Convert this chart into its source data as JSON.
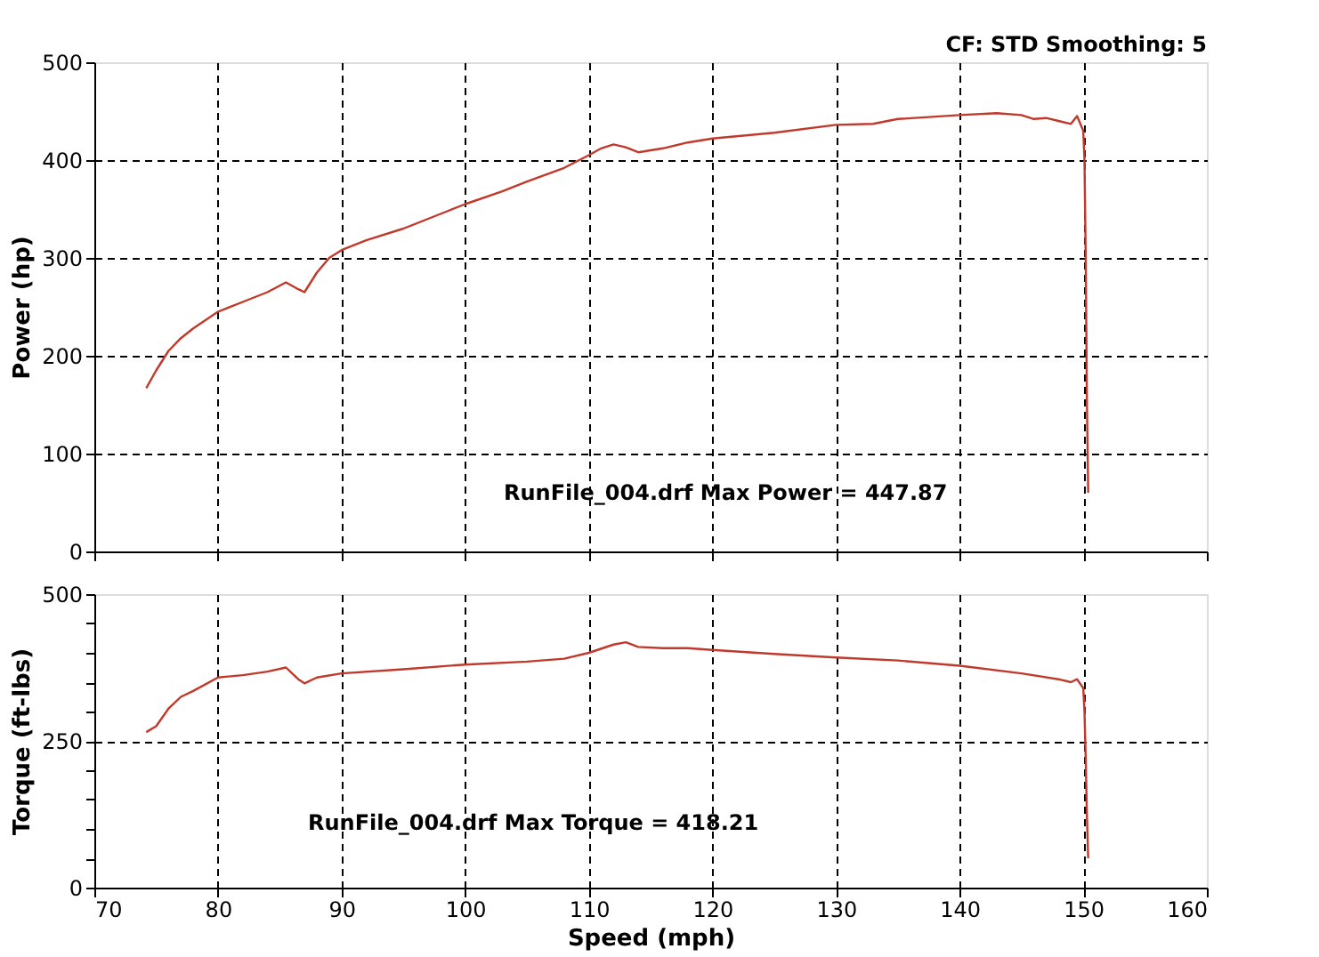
{
  "chart_data": [
    {
      "type": "line",
      "ylabel": "Power (hp)",
      "annotations": [
        "CF: STD  Smoothing: 5",
        "RunFile_004.drf Max Power = 447.87"
      ],
      "series": [
        {
          "color": "#c0392b",
          "x": [
            74.2,
            75,
            76,
            77,
            78,
            80,
            82,
            84,
            85.5,
            86.5,
            87,
            88,
            89,
            90,
            92,
            95,
            98,
            100,
            103,
            105,
            108,
            110,
            111,
            112,
            113,
            114,
            116,
            118,
            120,
            125,
            130,
            133,
            135,
            140,
            143,
            145,
            146,
            147,
            148,
            149,
            149.5,
            150,
            150.1,
            150.2,
            150.3,
            150.4
          ],
          "values": [
            167,
            185,
            205,
            218,
            228,
            245,
            255,
            265,
            275,
            268,
            265,
            285,
            300,
            308,
            318,
            330,
            345,
            355,
            368,
            378,
            392,
            405,
            412,
            416,
            413,
            408,
            412,
            418,
            422,
            428,
            436,
            437,
            442,
            446,
            448,
            446,
            442,
            443,
            440,
            437,
            445,
            430,
            400,
            300,
            150,
            60
          ]
        }
      ],
      "xlim": [
        70,
        160
      ],
      "xticks": [
        70,
        80,
        90,
        100,
        110,
        120,
        130,
        140,
        150,
        160
      ],
      "ylim": [
        0,
        500
      ],
      "yticks": [
        0,
        100,
        200,
        300,
        400,
        500
      ],
      "grid": true,
      "tick_labels": "y",
      "line_style": "solid",
      "marker": "none"
    },
    {
      "type": "line",
      "xlabel": "Speed (mph)",
      "ylabel": "Torque (ft-lbs)",
      "annotations": [
        "RunFile_004.drf Max Torque = 418.21"
      ],
      "series": [
        {
          "color": "#c0392b",
          "x": [
            74.2,
            75,
            76,
            77,
            78,
            80,
            82,
            84,
            85.5,
            86.5,
            87,
            88,
            90,
            95,
            100,
            105,
            108,
            110,
            112,
            113,
            114,
            116,
            118,
            120,
            125,
            130,
            135,
            140,
            145,
            148,
            149,
            149.5,
            150,
            150.1,
            150.2,
            150.3,
            150.4
          ],
          "values": [
            265,
            275,
            305,
            325,
            335,
            358,
            362,
            368,
            375,
            355,
            348,
            358,
            365,
            372,
            380,
            385,
            390,
            400,
            414,
            418,
            410,
            408,
            408,
            405,
            398,
            392,
            387,
            378,
            365,
            355,
            350,
            355,
            340,
            300,
            220,
            120,
            50
          ]
        }
      ],
      "xlim": [
        70,
        160
      ],
      "xticks": [
        70,
        80,
        90,
        100,
        110,
        120,
        130,
        140,
        150,
        160
      ],
      "ylim": [
        0,
        500
      ],
      "yticks": [
        0,
        {
          "value": 50,
          "label": null
        },
        {
          "value": 100,
          "label": null
        },
        {
          "value": 150,
          "label": null
        },
        {
          "value": 200,
          "label": null
        },
        250,
        {
          "value": 300,
          "label": null
        },
        {
          "value": 350,
          "label": null
        },
        {
          "value": 400,
          "label": null
        },
        {
          "value": 450,
          "label": null
        },
        500
      ],
      "grid": true,
      "line_style": "solid",
      "marker": "none"
    }
  ]
}
